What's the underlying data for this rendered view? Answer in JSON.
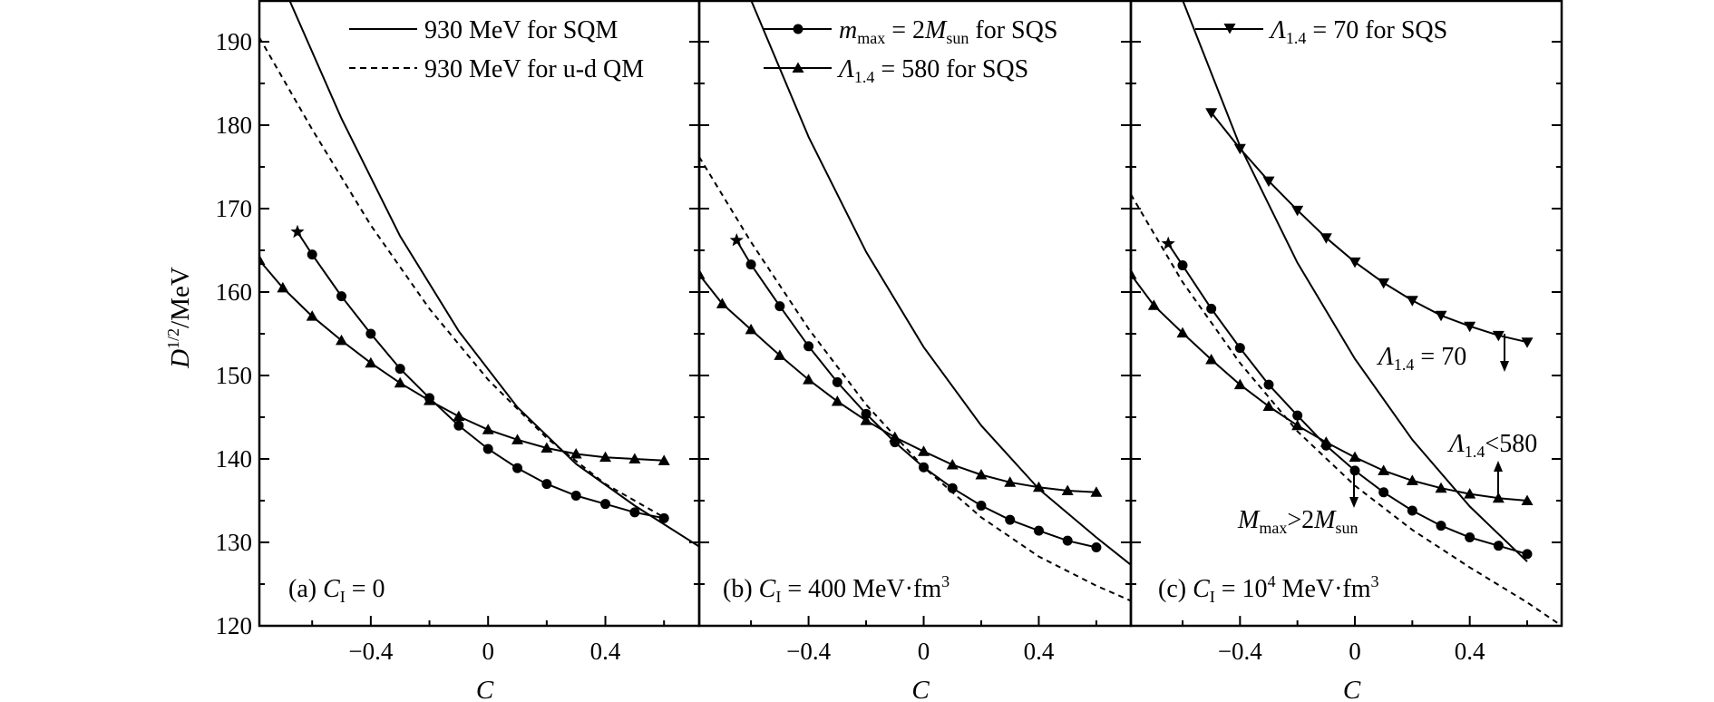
{
  "figure": {
    "ylabel_main": "D",
    "ylabel_sup": "1/2",
    "ylabel_unit": "/MeV",
    "xlabel": "C",
    "yticks": [
      "120",
      "130",
      "140",
      "150",
      "160",
      "170",
      "180",
      "190"
    ],
    "xticks": [
      "−0.4",
      "0",
      "0.4"
    ]
  },
  "legend": {
    "panel_a": [
      {
        "style": "solid",
        "label": "930 MeV for SQM"
      },
      {
        "style": "dashed",
        "label": "930 MeV for u-d QM"
      }
    ],
    "panel_b": [
      {
        "marker": "circle",
        "sym": "m",
        "sub": "max",
        "mid": " = 2",
        "sym2": "M",
        "sub2": "sun",
        "tail": " for SQS"
      },
      {
        "marker": "triangle",
        "sym": "Λ",
        "sub": "1.4",
        "tail": " = 580 for SQS"
      }
    ],
    "panel_c": [
      {
        "marker": "triangle-down",
        "sym": "Λ",
        "sub": "1.4",
        "tail": " = 70 for SQS"
      }
    ]
  },
  "panel_labels": {
    "a": {
      "pre": "(a) ",
      "sym": "C",
      "sub": "I",
      "tail": " = 0"
    },
    "b": {
      "pre": "(b) ",
      "sym": "C",
      "sub": "I",
      "tail": " = 400 MeV·fm",
      "sup": "3"
    },
    "c": {
      "pre": "(c) ",
      "sym": "C",
      "sub": "I",
      "tail": " = 10",
      "sup_mid": "4",
      "tail2": " MeV·fm",
      "sup": "3"
    }
  },
  "annotations": {
    "lam70": {
      "sym": "Λ",
      "sub": "1.4",
      "tail": " = 70"
    },
    "lam580": {
      "sym": "Λ",
      "sub": "1.4",
      "tail": "<580"
    },
    "mmax": {
      "sym": "M",
      "sub": "max",
      "mid": ">2",
      "sym2": "M",
      "sub2": "sun"
    }
  },
  "colors": {
    "line": "#000000",
    "background": "#ffffff"
  },
  "chart_data": [
    {
      "type": "line",
      "panel": "a",
      "xlabel": "C",
      "ylabel": "D^1/2/MeV",
      "xlim": [
        -0.78,
        0.72
      ],
      "ylim": [
        120,
        195
      ],
      "series": [
        {
          "name": "930 MeV for SQM",
          "style": "solid",
          "x": [
            -0.68,
            -0.5,
            -0.3,
            -0.1,
            0.1,
            0.3,
            0.5,
            0.72
          ],
          "y": [
            195.2,
            180.8,
            166.7,
            155.3,
            146.2,
            139.4,
            134.4,
            129.5
          ]
        },
        {
          "name": "930 MeV for u-d QM",
          "style": "dashed",
          "x": [
            -0.78,
            -0.6,
            -0.4,
            -0.2,
            0.0,
            0.2,
            0.4,
            0.6
          ],
          "y": [
            190.5,
            179.5,
            168.0,
            158.0,
            149.5,
            142.5,
            137.0,
            133.0
          ]
        },
        {
          "name": "m_max = 2M_sun for SQS",
          "style": "circle",
          "x": [
            -0.6,
            -0.5,
            -0.4,
            -0.3,
            -0.2,
            -0.1,
            0.0,
            0.1,
            0.2,
            0.3,
            0.4,
            0.5,
            0.6
          ],
          "y": [
            164.5,
            159.5,
            155.0,
            150.8,
            147.3,
            144.0,
            141.2,
            138.9,
            137.0,
            135.6,
            134.6,
            133.6,
            132.9
          ]
        },
        {
          "name": "Λ1.4 = 580 for SQS",
          "style": "triangle",
          "x": [
            -0.78,
            -0.7,
            -0.6,
            -0.5,
            -0.4,
            -0.3,
            -0.2,
            -0.1,
            0.0,
            0.1,
            0.2,
            0.3,
            0.4,
            0.5,
            0.6
          ],
          "y": [
            163.8,
            160.5,
            157.1,
            154.2,
            151.5,
            149.1,
            147.0,
            145.1,
            143.5,
            142.3,
            141.3,
            140.6,
            140.2,
            140.0,
            139.8
          ]
        }
      ],
      "star": {
        "x": -0.65,
        "y": 167.2
      }
    },
    {
      "type": "line",
      "panel": "b",
      "xlabel": "C",
      "xlim": [
        -0.78,
        0.72
      ],
      "ylim": [
        120,
        195
      ],
      "series": [
        {
          "name": "930 MeV for SQM",
          "style": "solid",
          "x": [
            -0.6,
            -0.4,
            -0.2,
            0.0,
            0.2,
            0.4,
            0.6,
            0.72
          ],
          "y": [
            195.0,
            178.6,
            164.8,
            153.4,
            144.0,
            136.4,
            130.6,
            127.3
          ]
        },
        {
          "name": "930 MeV for u-d QM",
          "style": "dashed",
          "x": [
            -0.78,
            -0.6,
            -0.4,
            -0.2,
            0.0,
            0.2,
            0.4,
            0.6,
            0.72
          ],
          "y": [
            176.2,
            166.0,
            155.6,
            146.5,
            139.0,
            133.0,
            128.3,
            124.8,
            123.0
          ]
        },
        {
          "name": "m_max = 2M_sun for SQS",
          "style": "circle",
          "x": [
            -0.6,
            -0.5,
            -0.4,
            -0.3,
            -0.2,
            -0.1,
            0.0,
            0.1,
            0.2,
            0.3,
            0.4,
            0.5,
            0.6
          ],
          "y": [
            163.3,
            158.3,
            153.5,
            149.2,
            145.4,
            142.0,
            139.0,
            136.5,
            134.4,
            132.7,
            131.4,
            130.2,
            129.4
          ]
        },
        {
          "name": "Λ1.4 = 580 for SQS",
          "style": "triangle",
          "x": [
            -0.78,
            -0.7,
            -0.6,
            -0.5,
            -0.4,
            -0.3,
            -0.2,
            -0.1,
            0.0,
            0.1,
            0.2,
            0.3,
            0.4,
            0.5,
            0.6
          ],
          "y": [
            162.1,
            158.6,
            155.5,
            152.4,
            149.5,
            146.9,
            144.6,
            142.6,
            140.9,
            139.3,
            138.1,
            137.2,
            136.6,
            136.2,
            136.0
          ]
        }
      ],
      "star": {
        "x": -0.65,
        "y": 166.2
      }
    },
    {
      "type": "line",
      "panel": "c",
      "xlabel": "C",
      "xlim": [
        -0.78,
        0.72
      ],
      "ylim": [
        120,
        195
      ],
      "series": [
        {
          "name": "930 MeV for SQM",
          "style": "solid",
          "x": [
            -0.6,
            -0.4,
            -0.2,
            0.0,
            0.2,
            0.4,
            0.6
          ],
          "y": [
            195.0,
            177.5,
            163.5,
            152.0,
            142.3,
            134.3,
            127.7
          ]
        },
        {
          "name": "930 MeV for u-d QM",
          "style": "dashed",
          "x": [
            -0.78,
            -0.6,
            -0.4,
            -0.2,
            0.0,
            0.2,
            0.4,
            0.6,
            0.72
          ],
          "y": [
            171.7,
            161.2,
            151.5,
            143.3,
            136.8,
            131.5,
            127.0,
            122.8,
            120.0
          ]
        },
        {
          "name": "m_max = 2M_sun for SQS",
          "style": "circle",
          "x": [
            -0.6,
            -0.5,
            -0.4,
            -0.3,
            -0.2,
            -0.1,
            0.0,
            0.1,
            0.2,
            0.3,
            0.4,
            0.5,
            0.6
          ],
          "y": [
            163.2,
            158.0,
            153.3,
            148.9,
            145.2,
            141.6,
            138.6,
            136.0,
            133.8,
            132.0,
            130.6,
            129.6,
            128.6
          ]
        },
        {
          "name": "Λ1.4 = 580 for SQS",
          "style": "triangle",
          "x": [
            -0.78,
            -0.7,
            -0.6,
            -0.5,
            -0.4,
            -0.3,
            -0.2,
            -0.1,
            0.0,
            0.1,
            0.2,
            0.3,
            0.4,
            0.5,
            0.6
          ],
          "y": [
            162.1,
            158.4,
            155.1,
            151.9,
            148.9,
            146.3,
            144.0,
            142.0,
            140.2,
            138.6,
            137.4,
            136.5,
            135.8,
            135.3,
            135.0
          ]
        },
        {
          "name": "Λ1.4 = 70 for SQS",
          "style": "triangle-down",
          "x": [
            -0.5,
            -0.4,
            -0.3,
            -0.2,
            -0.1,
            0.0,
            0.1,
            0.2,
            0.3,
            0.4,
            0.5,
            0.6
          ],
          "y": [
            181.5,
            177.2,
            173.3,
            169.8,
            166.5,
            163.6,
            161.1,
            159.0,
            157.2,
            155.9,
            154.8,
            154.0
          ]
        }
      ],
      "star": {
        "x": -0.65,
        "y": 165.8
      }
    }
  ]
}
